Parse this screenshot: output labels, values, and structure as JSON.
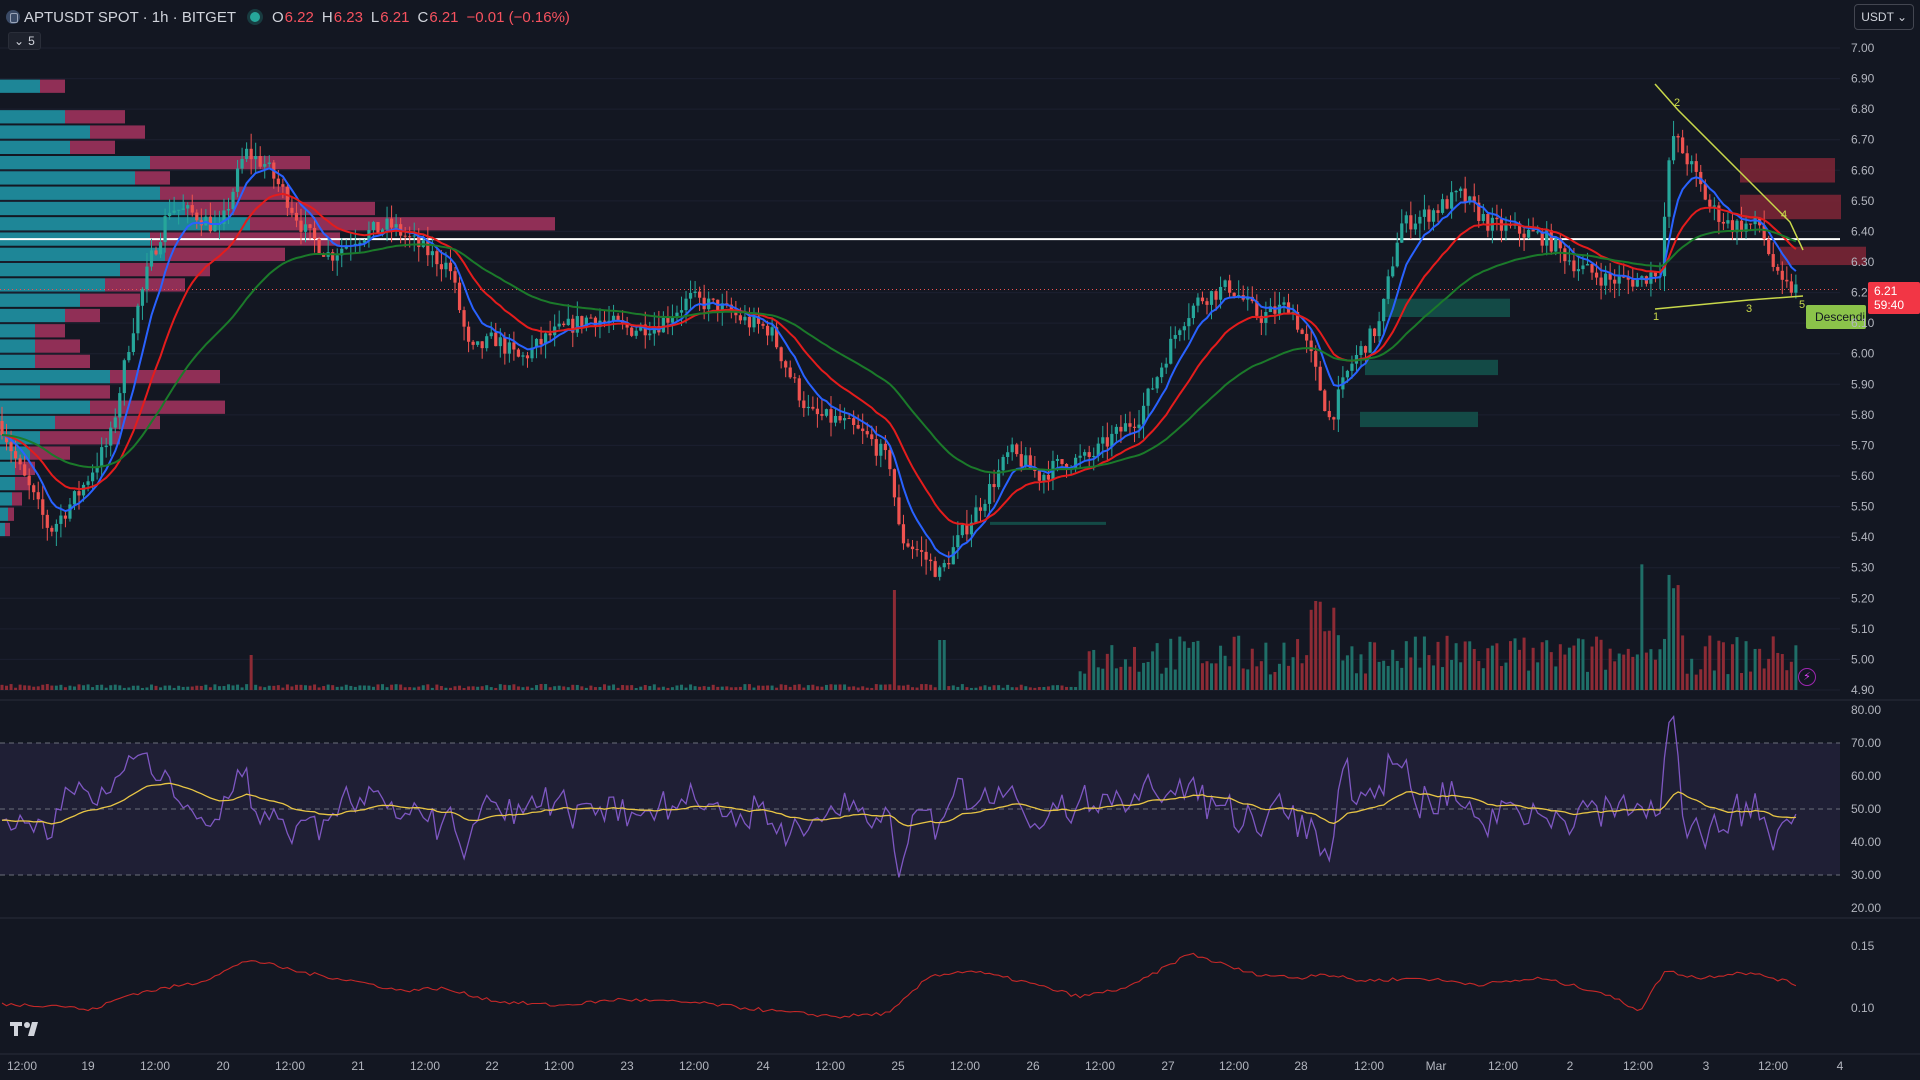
{
  "legend": {
    "title": "APTUSDT SPOT · 1h · BITGET",
    "open_label": "O",
    "open": "6.22",
    "high_label": "H",
    "high": "6.23",
    "low_label": "L",
    "low": "6.21",
    "close_label": "C",
    "close": "6.21",
    "change": "−0.01 (−0.16%)",
    "indicators_count": "5"
  },
  "currency_button": "USDT",
  "last_price": {
    "price": "6.21",
    "countdown": "59:40"
  },
  "pattern_label": "Descendi",
  "wave_labels": [
    "1",
    "2",
    "3",
    "4",
    "5"
  ],
  "price_axis": [
    "7.00",
    "6.90",
    "6.80",
    "6.70",
    "6.60",
    "6.50",
    "6.40",
    "6.30",
    "6.20",
    "6.10",
    "6.00",
    "5.90",
    "5.80",
    "5.70",
    "5.60",
    "5.50",
    "5.40",
    "5.30",
    "5.20",
    "5.10",
    "5.00",
    "4.90"
  ],
  "rsi_axis": [
    "80.00",
    "70.00",
    "60.00",
    "50.00",
    "40.00",
    "30.00",
    "20.00"
  ],
  "vol_axis": [
    "0.15",
    "0.10"
  ],
  "time_axis": [
    "12:00",
    "19",
    "12:00",
    "20",
    "12:00",
    "21",
    "12:00",
    "22",
    "12:00",
    "23",
    "12:00",
    "24",
    "12:00",
    "25",
    "12:00",
    "26",
    "12:00",
    "27",
    "12:00",
    "28",
    "12:00",
    "Mar",
    "12:00",
    "2",
    "12:00",
    "3",
    "12:00",
    "4"
  ],
  "colors": {
    "background": "#131722",
    "up": "#26a69a",
    "down": "#ef5350",
    "ma_fast": "#2962ff",
    "ma_mid": "#e41c1c",
    "ma_slow": "#1b7a2a",
    "rsi": "#7e57c2",
    "rsi_ma": "#e8c545",
    "hv": "#c62828"
  },
  "icons": {
    "symbol": "aptos-logo-icon",
    "collapse": "chevron-down-icon",
    "alert": "lightning-icon",
    "brand": "tradingview-logo-icon"
  }
}
